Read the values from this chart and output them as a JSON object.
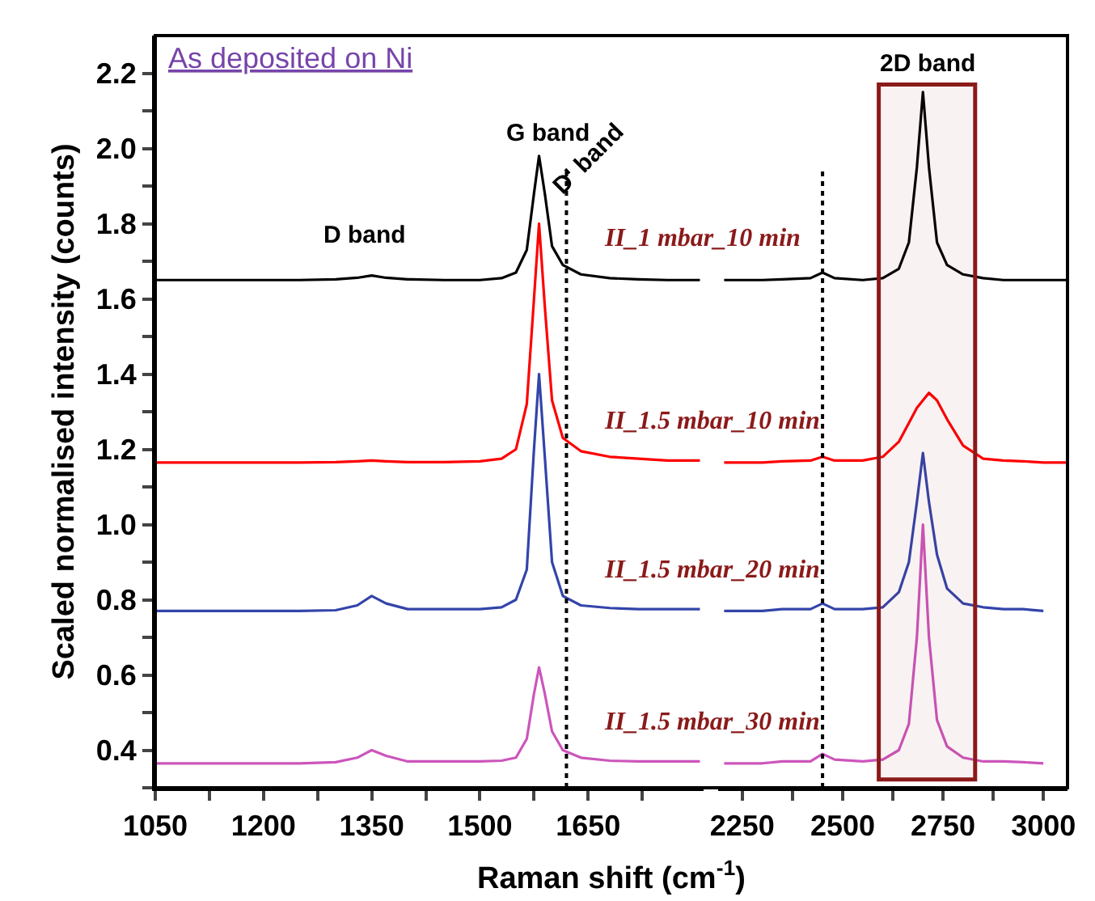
{
  "chart_data": [
    {
      "type": "line",
      "title": "As deposited on Ni",
      "xlabel": "Raman shift (cm$^{-1}$)",
      "ylabel": "Scaled normalised intensity (counts)",
      "x": [
        1050,
        1100,
        1150,
        1200,
        1250,
        1300,
        1330,
        1350,
        1370,
        1400,
        1450,
        1500,
        1530,
        1550,
        1565,
        1575,
        1582,
        1590,
        1600,
        1615,
        1640,
        1680,
        1720,
        1760,
        1805
      ],
      "series": [
        {
          "name": "II_1 mbar_10 min",
          "color": "#000000",
          "values": [
            1.65,
            1.65,
            1.65,
            1.65,
            1.65,
            1.652,
            1.656,
            1.662,
            1.656,
            1.652,
            1.65,
            1.65,
            1.655,
            1.67,
            1.73,
            1.88,
            1.98,
            1.88,
            1.74,
            1.69,
            1.665,
            1.655,
            1.652,
            1.65,
            1.65
          ]
        },
        {
          "name": "II_1.5 mbar_10 min",
          "color": "#ff0000",
          "values": [
            1.165,
            1.165,
            1.165,
            1.165,
            1.165,
            1.166,
            1.168,
            1.17,
            1.168,
            1.166,
            1.166,
            1.168,
            1.175,
            1.2,
            1.32,
            1.6,
            1.8,
            1.58,
            1.33,
            1.23,
            1.195,
            1.18,
            1.175,
            1.17,
            1.17
          ]
        },
        {
          "name": "II_1.5 mbar_20 min",
          "color": "#3344aa",
          "values": [
            0.77,
            0.77,
            0.77,
            0.77,
            0.77,
            0.772,
            0.785,
            0.81,
            0.79,
            0.775,
            0.775,
            0.775,
            0.78,
            0.8,
            0.88,
            1.2,
            1.4,
            1.18,
            0.9,
            0.81,
            0.785,
            0.778,
            0.775,
            0.775,
            0.775
          ]
        },
        {
          "name": "II_1.5 mbar_30 min",
          "color": "#cc55bb",
          "values": [
            0.365,
            0.365,
            0.365,
            0.365,
            0.365,
            0.368,
            0.38,
            0.4,
            0.385,
            0.37,
            0.37,
            0.37,
            0.372,
            0.38,
            0.43,
            0.55,
            0.62,
            0.55,
            0.45,
            0.4,
            0.38,
            0.372,
            0.37,
            0.37,
            0.37
          ]
        }
      ],
      "xlim": [
        1050,
        1810
      ],
      "ylim": [
        0.3,
        2.3
      ],
      "xticks": [
        1050,
        {
          "value": 1125,
          "label": null
        },
        1200,
        {
          "value": 1275,
          "label": null
        },
        1350,
        {
          "value": 1425,
          "label": null
        },
        1500,
        {
          "value": 1575,
          "label": null
        },
        1650,
        {
          "value": 1725,
          "label": null
        }
      ],
      "yticks": [
        {
          "value": 0.3,
          "label": null
        },
        {
          "value": 0.4,
          "label": "0.4"
        },
        {
          "value": 0.5,
          "label": null
        },
        {
          "value": 0.6,
          "label": "0.6"
        },
        {
          "value": 0.7,
          "label": null
        },
        {
          "value": 0.8,
          "label": "0.8"
        },
        {
          "value": 0.9,
          "label": null
        },
        {
          "value": 1.0,
          "label": "1.0"
        },
        {
          "value": 1.1,
          "label": null
        },
        {
          "value": 1.2,
          "label": "1.2"
        },
        {
          "value": 1.3,
          "label": null
        },
        {
          "value": 1.4,
          "label": "1.4"
        },
        {
          "value": 1.5,
          "label": null
        },
        {
          "value": 1.6,
          "label": "1.6"
        },
        {
          "value": 1.7,
          "label": null
        },
        {
          "value": 1.8,
          "label": "1.8"
        },
        {
          "value": 1.9,
          "label": null
        },
        {
          "value": 2.0,
          "label": "2.0"
        },
        {
          "value": 2.1,
          "label": null
        },
        {
          "value": 2.2,
          "label": "2.2"
        }
      ],
      "annotations": [
        "D band",
        "G band",
        "D' band"
      ],
      "ref_lines": [
        {
          "axis": "x",
          "value": 1620,
          "line_style": "dotted",
          "color": "#000000"
        }
      ]
    },
    {
      "type": "line",
      "x": [
        2205,
        2300,
        2350,
        2420,
        2450,
        2480,
        2550,
        2600,
        2640,
        2665,
        2685,
        2700,
        2715,
        2735,
        2760,
        2800,
        2850,
        2900,
        2950,
        3000,
        3060
      ],
      "series": [
        {
          "color": "#000000",
          "values": [
            1.65,
            1.65,
            1.652,
            1.655,
            1.67,
            1.655,
            1.65,
            1.655,
            1.68,
            1.75,
            1.95,
            2.15,
            1.95,
            1.75,
            1.69,
            1.665,
            1.655,
            1.65,
            1.65,
            1.65,
            1.65
          ]
        },
        {
          "color": "#ff0000",
          "values": [
            1.165,
            1.165,
            1.168,
            1.17,
            1.18,
            1.17,
            1.17,
            1.18,
            1.22,
            1.27,
            1.31,
            1.33,
            1.35,
            1.33,
            1.28,
            1.21,
            1.175,
            1.17,
            1.168,
            1.165,
            1.165
          ]
        },
        {
          "color": "#3344aa",
          "values": [
            0.77,
            0.77,
            0.775,
            0.775,
            0.79,
            0.775,
            0.775,
            0.78,
            0.82,
            0.9,
            1.06,
            1.19,
            1.06,
            0.92,
            0.83,
            0.79,
            0.78,
            0.775,
            0.775,
            0.77,
            null
          ]
        },
        {
          "color": "#cc55bb",
          "values": [
            0.365,
            0.365,
            0.37,
            0.37,
            0.39,
            0.375,
            0.37,
            0.375,
            0.4,
            0.47,
            0.7,
            1.0,
            0.7,
            0.48,
            0.41,
            0.38,
            0.37,
            0.37,
            0.368,
            0.365,
            null
          ]
        }
      ],
      "xlim": [
        2190,
        3060
      ],
      "ylim": [
        0.3,
        2.3
      ],
      "xticks": [
        2250,
        {
          "value": 2375,
          "label": null
        },
        2500,
        {
          "value": 2625,
          "label": null
        },
        2750,
        {
          "value": 2875,
          "label": null
        },
        3000
      ],
      "tick_labels": "x",
      "ref_lines": [
        {
          "axis": "x",
          "value": 2450,
          "line_style": "dotted",
          "color": "#000000"
        }
      ],
      "bands": [
        {
          "axis": "x",
          "from": 2590,
          "to": 2830,
          "label": "2D band",
          "color": "#8b1a1a"
        }
      ]
    }
  ]
}
